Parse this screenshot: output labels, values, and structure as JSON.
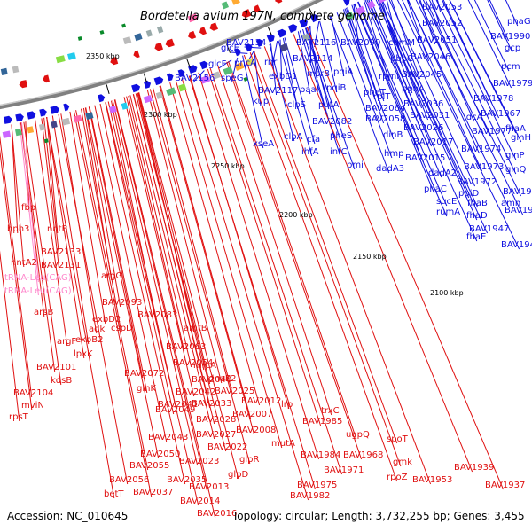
{
  "title": "Bordetella avium 197N, complete genome",
  "accession": "Accession: NC_010645",
  "summary": "Topology: circular; Length: 3,732,255 bp; Genes: 3,455",
  "ticks": [
    "2350 kbp",
    "2300 kbp",
    "2250 kbp",
    "2200 kbp",
    "2150 kbp",
    "2100 kbp"
  ],
  "colors": {
    "forward": "#1010e0",
    "reverse": "#e01010",
    "rna": "#ff88cc",
    "backbone": "#808080",
    "tick_mark": "#0a8a2a"
  },
  "blue_labels": [
    {
      "text": "BAV2053"
    },
    {
      "text": "BAV2052"
    },
    {
      "text": "phaG"
    },
    {
      "text": "comM"
    },
    {
      "text": "BAV2051"
    },
    {
      "text": "BAV1990"
    },
    {
      "text": "gcp"
    },
    {
      "text": "glcE"
    },
    {
      "text": "BAV2134"
    },
    {
      "text": "BAV2116"
    },
    {
      "text": "BAV2090"
    },
    {
      "text": "glcF"
    },
    {
      "text": "pncA"
    },
    {
      "text": "rnr"
    },
    {
      "text": "BAV2114"
    },
    {
      "text": "pbpC"
    },
    {
      "text": "BAV2046"
    },
    {
      "text": "pcm"
    },
    {
      "text": "BAV2156"
    },
    {
      "text": "speG"
    },
    {
      "text": "exbD1"
    },
    {
      "text": "msrB"
    },
    {
      "text": "pqiA"
    },
    {
      "text": "rpmI"
    },
    {
      "text": "BAV2045"
    },
    {
      "text": "rplT"
    },
    {
      "text": "BAV1979"
    },
    {
      "text": "BAV2117"
    },
    {
      "text": "paaI"
    },
    {
      "text": "pqiB"
    },
    {
      "text": "pphA"
    },
    {
      "text": "BAV1978"
    },
    {
      "text": "kup"
    },
    {
      "text": "pheT"
    },
    {
      "text": "BAV2036"
    },
    {
      "text": "clpS"
    },
    {
      "text": "putA"
    },
    {
      "text": "BAV2064"
    },
    {
      "text": "BAV2031"
    },
    {
      "text": "BAV1967"
    },
    {
      "text": "BAV2082"
    },
    {
      "text": "BAV2058"
    },
    {
      "text": "ldcA"
    },
    {
      "text": "clpA"
    },
    {
      "text": "BAV2026"
    },
    {
      "text": "BAV1977"
    },
    {
      "text": "fhaA"
    },
    {
      "text": "xseA"
    },
    {
      "text": "cfa"
    },
    {
      "text": "pheS"
    },
    {
      "text": "infC"
    },
    {
      "text": "dinB"
    },
    {
      "text": "glnH"
    },
    {
      "text": "BAV2017"
    },
    {
      "text": "BAV1974"
    },
    {
      "text": "ihfA"
    },
    {
      "text": "hmp"
    },
    {
      "text": "glnP"
    },
    {
      "text": "pmi"
    },
    {
      "text": "BAV2015"
    },
    {
      "text": "dadA3"
    },
    {
      "text": "BAV1973"
    },
    {
      "text": "dadA2"
    },
    {
      "text": "glnQ"
    },
    {
      "text": "BAV1972"
    },
    {
      "text": "phaC"
    },
    {
      "text": "ppiD"
    },
    {
      "text": "BAV1954"
    },
    {
      "text": "sucE"
    },
    {
      "text": "fhaB"
    },
    {
      "text": "amn"
    },
    {
      "text": "rumA"
    },
    {
      "text": "fhaD"
    },
    {
      "text": "BAV1949"
    },
    {
      "text": "BAV1947"
    },
    {
      "text": "fhaE"
    },
    {
      "text": "BAV1946"
    }
  ],
  "red_labels": [
    {
      "text": "fbp"
    },
    {
      "text": "bph3"
    },
    {
      "text": "nntB"
    },
    {
      "text": "BAV2133"
    },
    {
      "text": "nntA2"
    },
    {
      "text": "BAV2131"
    },
    {
      "text": "argG"
    },
    {
      "text": "arsB"
    },
    {
      "text": "BAV2093"
    },
    {
      "text": "exbD2"
    },
    {
      "text": "BAV2083"
    },
    {
      "text": "adk"
    },
    {
      "text": "cspD"
    },
    {
      "text": "argF"
    },
    {
      "text": "exbB2"
    },
    {
      "text": "amtB"
    },
    {
      "text": "lpxK"
    },
    {
      "text": "BAV2063"
    },
    {
      "text": "BAV2101"
    },
    {
      "text": "BAV2054"
    },
    {
      "text": "kdsB"
    },
    {
      "text": "BAV2072"
    },
    {
      "text": "mrcA"
    },
    {
      "text": "BAV2104"
    },
    {
      "text": "BAV2040"
    },
    {
      "text": "dnaE2"
    },
    {
      "text": "glnK"
    },
    {
      "text": "BAV2042"
    },
    {
      "text": "BAV2025"
    },
    {
      "text": "mviN"
    },
    {
      "text": "BAV2041"
    },
    {
      "text": "BAV2033"
    },
    {
      "text": "BAV2012"
    },
    {
      "text": "lrp"
    },
    {
      "text": "rpsT"
    },
    {
      "text": "BAV2049"
    },
    {
      "text": "BAV2028"
    },
    {
      "text": "BAV2007"
    },
    {
      "text": "trxC"
    },
    {
      "text": "BAV1985"
    },
    {
      "text": "BAV2043"
    },
    {
      "text": "BAV2027"
    },
    {
      "text": "BAV2008"
    },
    {
      "text": "ugpQ"
    },
    {
      "text": "spoT"
    },
    {
      "text": "BAV2022"
    },
    {
      "text": "mutA"
    },
    {
      "text": "BAV2050"
    },
    {
      "text": "BAV1984"
    },
    {
      "text": "BAV1968"
    },
    {
      "text": "BAV2023"
    },
    {
      "text": "glpR"
    },
    {
      "text": "gmk"
    },
    {
      "text": "BAV2055"
    },
    {
      "text": "BAV1971"
    },
    {
      "text": "BAV1939"
    },
    {
      "text": "glpD"
    },
    {
      "text": "rpoZ"
    },
    {
      "text": "BAV1953"
    },
    {
      "text": "BAV2056"
    },
    {
      "text": "BAV2035"
    },
    {
      "text": "BAV1975"
    },
    {
      "text": "BAV2013"
    },
    {
      "text": "BAV1937"
    },
    {
      "text": "betT"
    },
    {
      "text": "BAV2037"
    },
    {
      "text": "BAV1982"
    },
    {
      "text": "BAV2014"
    },
    {
      "text": "BAV2016"
    }
  ],
  "pink_labels": [
    {
      "text": "tRNA-Leu(CAG)"
    },
    {
      "text": "tRNA-Leu(CAG)"
    }
  ]
}
